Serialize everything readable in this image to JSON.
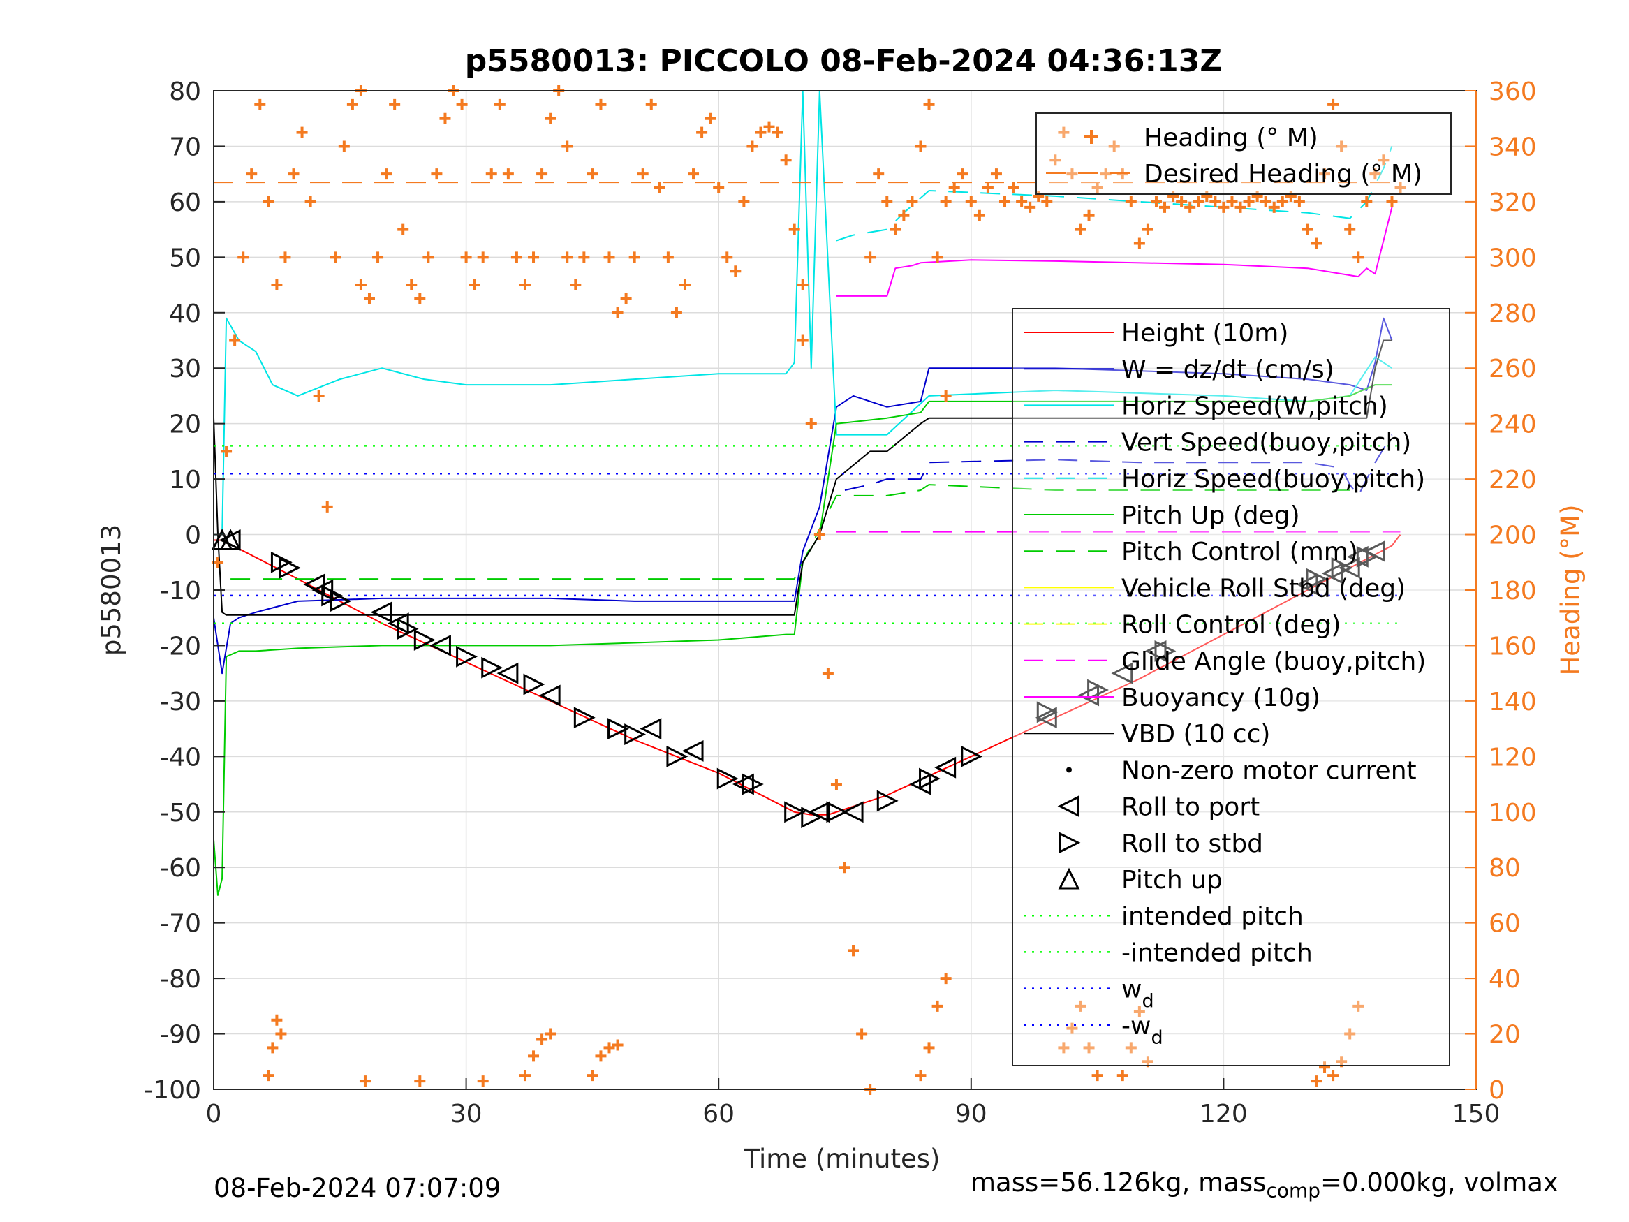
{
  "chart_data": {
    "type": "line",
    "title": "p5580013: PICCOLO 08-Feb-2024 04:36:13Z",
    "xlabel": "Time (minutes)",
    "ylabel_left": "p5580013",
    "ylabel_right": "Heading (°M)",
    "xlim": [
      0,
      150
    ],
    "ylim_left": [
      -100,
      80
    ],
    "ylim_right": [
      0,
      360
    ],
    "xticks": [
      "0",
      "30",
      "60",
      "90",
      "120",
      "150"
    ],
    "yticks_left": [
      "80",
      "70",
      "60",
      "50",
      "40",
      "30",
      "20",
      "10",
      "0",
      "-10",
      "-20",
      "-30",
      "-40",
      "-50",
      "-60",
      "-70",
      "-80",
      "-90",
      "-100"
    ],
    "yticks_right": [
      "360",
      "340",
      "320",
      "300",
      "280",
      "260",
      "240",
      "220",
      "200",
      "180",
      "160",
      "140",
      "120",
      "100",
      "80",
      "60",
      "40",
      "20",
      "0"
    ],
    "grid": true,
    "legend_top": {
      "placement": "top-right",
      "entries": [
        {
          "name": "Heading (° M)",
          "color": "#f47a20",
          "style": "plus"
        },
        {
          "name": "Desired Heading (° M)",
          "color": "#f47a20",
          "style": "dashed"
        }
      ]
    },
    "legend_main": {
      "placement": "right",
      "entries": [
        {
          "name": "Height (10m)",
          "color": "#ff0000",
          "style": "solid"
        },
        {
          "name": "W = dz/dt (cm/s)",
          "color": "#0000cc",
          "style": "solid"
        },
        {
          "name": "Horiz Speed(W,pitch)",
          "color": "#00e5e5",
          "style": "solid"
        },
        {
          "name": "Vert Speed(buoy,pitch)",
          "color": "#0000cc",
          "style": "dashed"
        },
        {
          "name": "Horiz Speed(buoy,pitch)",
          "color": "#00e5e5",
          "style": "dashed"
        },
        {
          "name": "Pitch Up (deg)",
          "color": "#00cc00",
          "style": "solid"
        },
        {
          "name": "Pitch Control (mm)",
          "color": "#00cc00",
          "style": "dashed"
        },
        {
          "name": "Vehicle Roll Stbd (deg)",
          "color": "#ffff00",
          "style": "solid"
        },
        {
          "name": "Roll Control (deg)",
          "color": "#ffff00",
          "style": "dashed"
        },
        {
          "name": "Glide Angle (buoy,pitch)",
          "color": "#ff00ff",
          "style": "dashed"
        },
        {
          "name": "Buoyancy (10g)",
          "color": "#ff00ff",
          "style": "solid"
        },
        {
          "name": "VBD (10 cc)",
          "color": "#000000",
          "style": "solid"
        },
        {
          "name": "Non-zero motor current",
          "color": "#000000",
          "style": "dot"
        },
        {
          "name": "Roll to port",
          "color": "#000000",
          "style": "tri-left"
        },
        {
          "name": "Roll to stbd",
          "color": "#000000",
          "style": "tri-right"
        },
        {
          "name": "Pitch up",
          "color": "#000000",
          "style": "tri-up"
        },
        {
          "name": "intended pitch",
          "color": "#00ff00",
          "style": "dotted"
        },
        {
          "name": "-intended pitch",
          "color": "#00ff00",
          "style": "dotted"
        },
        {
          "name": "w",
          "sub": "d",
          "color": "#0000ff",
          "style": "dotted"
        },
        {
          "name": "-w",
          "sub": "d",
          "color": "#0000ff",
          "style": "dotted"
        }
      ]
    },
    "series": [
      {
        "name": "Height (10m)",
        "color": "#ff0000",
        "x": [
          0,
          1,
          10,
          20,
          30,
          40,
          50,
          60,
          69,
          71,
          73,
          75,
          80,
          90,
          100,
          110,
          120,
          130,
          135,
          140,
          141
        ],
        "y": [
          -1,
          -1,
          -8,
          -16,
          -23,
          -30,
          -37,
          -43,
          -50,
          -50.5,
          -50.5,
          -49.5,
          -47,
          -40,
          -33,
          -26,
          -18,
          -10,
          -6,
          -2,
          0
        ]
      },
      {
        "name": "W = dz/dt (cm/s)",
        "color": "#0000cc",
        "x": [
          0,
          1,
          2,
          3,
          5,
          10,
          20,
          30,
          40,
          50,
          60,
          69,
          70,
          72,
          74,
          76,
          80,
          84,
          85,
          100,
          120,
          130,
          135,
          137,
          138,
          139,
          140
        ],
        "y": [
          -15,
          -25,
          -16,
          -15,
          -14,
          -12,
          -11.5,
          -11.5,
          -11.5,
          -12,
          -12,
          -12,
          -3,
          5,
          23,
          25,
          23,
          24,
          30,
          30,
          29,
          28,
          27,
          26,
          31,
          39,
          35
        ]
      },
      {
        "name": "Horiz Speed(W,pitch)",
        "color": "#00e5e5",
        "x": [
          0,
          1,
          1.5,
          3,
          5,
          7,
          10,
          15,
          20,
          25,
          30,
          40,
          50,
          60,
          68,
          69,
          70,
          71,
          72,
          74,
          76,
          80,
          85,
          100,
          120,
          130,
          135,
          138,
          140
        ],
        "y": [
          0,
          0,
          39,
          35,
          33,
          27,
          25,
          28,
          30,
          28,
          27,
          27,
          28,
          29,
          29,
          31,
          80,
          30,
          80,
          18,
          18,
          18,
          25,
          26,
          25,
          24,
          25,
          32,
          30
        ]
      },
      {
        "name": "Vert Speed(buoy,pitch)",
        "color": "#0000cc",
        "x": [
          75,
          78,
          80,
          84,
          85,
          100,
          110,
          120,
          130,
          134,
          135,
          136,
          137,
          138,
          140
        ],
        "y": [
          8,
          9,
          10,
          10,
          13,
          13.5,
          13,
          13,
          13,
          12,
          9,
          7,
          10,
          13,
          18
        ]
      },
      {
        "name": "Horiz Speed(buoy,pitch)",
        "color": "#00e5e5",
        "x": [
          74,
          76,
          80,
          82,
          85,
          100,
          110,
          120,
          130,
          135,
          137,
          139,
          140
        ],
        "y": [
          53,
          54,
          55,
          58,
          62,
          61,
          60,
          59,
          58,
          57,
          60,
          66,
          70
        ]
      },
      {
        "name": "Pitch Up (deg)",
        "color": "#00cc00",
        "x": [
          0,
          0.5,
          1,
          1.5,
          3,
          5,
          10,
          20,
          30,
          40,
          50,
          60,
          68,
          69,
          70,
          72,
          74,
          80,
          84,
          85,
          100,
          120,
          130,
          135,
          138,
          140
        ],
        "y": [
          -55,
          -65,
          -62,
          -22,
          -21,
          -21,
          -20.5,
          -20,
          -20,
          -20,
          -19.5,
          -19,
          -18,
          -18,
          -5,
          0,
          20,
          21,
          22,
          24,
          24,
          24,
          24,
          25,
          27,
          27
        ]
      },
      {
        "name": "Pitch Control (mm)",
        "color": "#00cc00",
        "x": [
          2,
          69,
          74,
          80,
          84,
          85,
          100,
          120,
          135
        ],
        "y": [
          -8,
          -8,
          7,
          7,
          8,
          9,
          8,
          8,
          8
        ]
      },
      {
        "name": "Glide Angle (buoy,pitch)",
        "color": "#ff00ff",
        "x": [
          74,
          141
        ],
        "y": [
          0.5,
          0.5
        ]
      },
      {
        "name": "Buoyancy (10g)",
        "color": "#ff00ff",
        "x": [
          74,
          80,
          81,
          83,
          84,
          90,
          100,
          120,
          130,
          136,
          137,
          138,
          140
        ],
        "y": [
          43,
          43,
          48,
          48.5,
          49,
          49.5,
          49.3,
          48.7,
          48,
          46.5,
          48,
          47,
          59
        ]
      },
      {
        "name": "VBD (10 cc)",
        "color": "#000000",
        "x": [
          0,
          0.5,
          1,
          1.5,
          10,
          30,
          50,
          69,
          70,
          72,
          74,
          78,
          80,
          84,
          85,
          120,
          133,
          137,
          138,
          139,
          140
        ],
        "y": [
          21,
          0,
          -14,
          -14.5,
          -14.5,
          -14.5,
          -14.5,
          -14.5,
          -5,
          0,
          10,
          15,
          15,
          20,
          21,
          21,
          21,
          21,
          30,
          35,
          35
        ]
      },
      {
        "name": "intended pitch",
        "color": "#00ff00",
        "x": [
          0,
          141
        ],
        "y": [
          16,
          16
        ]
      },
      {
        "name": "-intended pitch",
        "color": "#00ff00",
        "x": [
          0,
          141
        ],
        "y": [
          -16,
          -16
        ]
      },
      {
        "name": "w_d",
        "color": "#0000ff",
        "x": [
          0,
          141
        ],
        "y": [
          11,
          11
        ]
      },
      {
        "name": "-w_d",
        "color": "#0000ff",
        "x": [
          0,
          141
        ],
        "y": [
          -11,
          -11
        ]
      },
      {
        "name": "Desired Heading (° M)",
        "color": "#f47a20",
        "axis": "right",
        "x": [
          0,
          141
        ],
        "y": [
          327,
          327
        ]
      }
    ],
    "heading_segments": [
      {
        "x": [
          0.5,
          1.5,
          2.5,
          3.5,
          4.5,
          5.5,
          6.5,
          7.5,
          8.5,
          9.5,
          10.5,
          11.5,
          12.5,
          13.5,
          14.5,
          15.5,
          16.5,
          17.5
        ],
        "y": [
          190,
          230,
          270,
          300,
          330,
          355,
          320,
          290,
          300,
          330,
          345,
          320,
          250,
          210,
          300,
          340,
          355,
          360
        ]
      },
      {
        "x": [
          17.5,
          18.5,
          19.5,
          20.5,
          21.5,
          22.5,
          23.5,
          24.5,
          25.5,
          26.5,
          27.5,
          28.5,
          29.5
        ],
        "y": [
          290,
          285,
          300,
          330,
          355,
          310,
          290,
          285,
          300,
          330,
          350,
          360,
          355
        ]
      },
      {
        "x": [
          30,
          31,
          32,
          33,
          34,
          35,
          36,
          37,
          38,
          39,
          40,
          41,
          42
        ],
        "y": [
          300,
          290,
          300,
          330,
          355,
          330,
          300,
          290,
          300,
          330,
          350,
          360,
          340
        ]
      },
      {
        "x": [
          42,
          43,
          44,
          45,
          46,
          47,
          48,
          49,
          50,
          51,
          52,
          53,
          54,
          55,
          56,
          57,
          58,
          59,
          60,
          61,
          62,
          63,
          64,
          65,
          66,
          67,
          68,
          69,
          70
        ],
        "y": [
          300,
          290,
          300,
          330,
          355,
          300,
          280,
          285,
          300,
          330,
          355,
          325,
          300,
          280,
          290,
          330,
          345,
          350,
          325,
          300,
          295,
          320,
          340,
          345,
          347,
          345,
          335,
          310,
          290
        ]
      },
      {
        "x": [
          70,
          71,
          72,
          73,
          74,
          75,
          76,
          77,
          78
        ],
        "y": [
          270,
          240,
          200,
          150,
          110,
          80,
          50,
          20,
          0
        ]
      },
      {
        "x": [
          78,
          79,
          80,
          81,
          82,
          83,
          84,
          85,
          86,
          87
        ],
        "y": [
          300,
          330,
          320,
          310,
          315,
          320,
          340,
          355,
          300,
          250
        ]
      },
      {
        "x": [
          87,
          88,
          89,
          90,
          91,
          92,
          93,
          94,
          95,
          96,
          97,
          98,
          99,
          100,
          101,
          102,
          103,
          104,
          105,
          106,
          107,
          108,
          109,
          110,
          111,
          112,
          113,
          114,
          115,
          116,
          117,
          118,
          119,
          120,
          121,
          122,
          123,
          124,
          125,
          126,
          127,
          128,
          129,
          130,
          131,
          132,
          133,
          134,
          135,
          136,
          137,
          138,
          139,
          140,
          141
        ],
        "y": [
          320,
          325,
          330,
          320,
          315,
          325,
          330,
          320,
          325,
          320,
          318,
          322,
          320,
          335,
          345,
          330,
          310,
          315,
          325,
          330,
          340,
          330,
          320,
          305,
          310,
          320,
          318,
          322,
          320,
          318,
          320,
          322,
          320,
          318,
          320,
          318,
          320,
          322,
          320,
          318,
          320,
          322,
          320,
          310,
          305,
          330,
          355,
          340,
          310,
          300,
          320,
          330,
          335,
          320,
          325
        ]
      },
      {
        "x": [
          6.5,
          7,
          7.5,
          8
        ],
        "y": [
          5,
          15,
          25,
          20
        ]
      },
      {
        "x": [
          18,
          24.5,
          32
        ],
        "y": [
          3,
          3,
          3
        ]
      },
      {
        "x": [
          37,
          38,
          39,
          40
        ],
        "y": [
          5,
          12,
          18,
          20
        ]
      },
      {
        "x": [
          45,
          46,
          47,
          48
        ],
        "y": [
          5,
          12,
          15,
          16
        ]
      },
      {
        "x": [
          84,
          85,
          86,
          87
        ],
        "y": [
          5,
          15,
          30,
          40
        ]
      },
      {
        "x": [
          101,
          102,
          103,
          104,
          105
        ],
        "y": [
          15,
          22,
          30,
          15,
          5
        ]
      },
      {
        "x": [
          108,
          109,
          110,
          111
        ],
        "y": [
          5,
          15,
          28,
          10
        ]
      },
      {
        "x": [
          131,
          132,
          133,
          134,
          135,
          136
        ],
        "y": [
          3,
          8,
          5,
          10,
          20,
          30
        ]
      }
    ],
    "markers": {
      "roll_port": {
        "x": [
          2,
          12,
          13,
          20,
          22,
          27,
          35,
          40,
          52,
          57,
          63,
          72,
          76,
          84,
          87,
          99,
          104,
          108,
          112,
          130,
          133,
          135,
          136,
          138
        ],
        "y": [
          -1,
          -9,
          -10,
          -14,
          -16,
          -20,
          -25,
          -29,
          -35,
          -39,
          -45,
          -50,
          -50,
          -45,
          -42,
          -33,
          -29,
          -25,
          -21,
          -9,
          -7,
          -6,
          -4,
          -3
        ]
      },
      "roll_stbd": {
        "x": [
          8,
          9,
          14,
          15,
          23,
          25,
          30,
          33,
          38,
          44,
          48,
          50,
          55,
          61,
          64,
          69,
          71,
          74,
          80,
          85,
          90,
          99,
          105,
          113,
          131,
          134,
          137
        ],
        "y": [
          -5,
          -6,
          -11,
          -12,
          -17,
          -19,
          -22,
          -24,
          -27,
          -33,
          -35,
          -36,
          -40,
          -44,
          -45,
          -50,
          -51,
          -50,
          -48,
          -44,
          -40,
          -32,
          -28,
          -21,
          -8,
          -6,
          -4
        ]
      },
      "pitch_up": {
        "x": [
          1,
          2
        ],
        "y": [
          -1,
          -1
        ]
      }
    },
    "footer_left": "08-Feb-2024 07:07:09",
    "footer_right_a": "mass=56.126kg, mass",
    "footer_right_sub": "comp",
    "footer_right_b": "=0.000kg, volmax"
  }
}
